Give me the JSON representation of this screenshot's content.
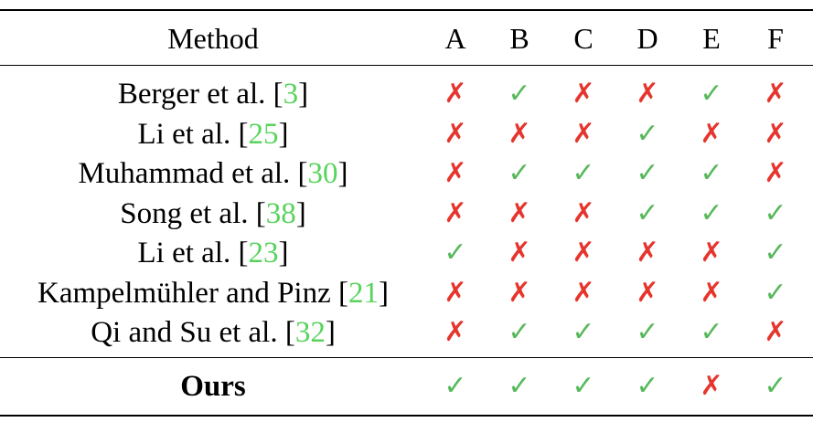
{
  "table": {
    "header": {
      "method": "Method",
      "columns": [
        "A",
        "B",
        "C",
        "D",
        "E",
        "F"
      ]
    },
    "rows": [
      {
        "name": "Berger et al. [",
        "ref": "3",
        "close": "]",
        "values": [
          "✗",
          "✓",
          "✗",
          "✗",
          "✓",
          "✗"
        ]
      },
      {
        "name": "Li et al. [",
        "ref": "25",
        "close": "]",
        "values": [
          "✗",
          "✗",
          "✗",
          "✓",
          "✗",
          "✗"
        ]
      },
      {
        "name": "Muhammad et al. [",
        "ref": "30",
        "close": "]",
        "values": [
          "✗",
          "✓",
          "✓",
          "✓",
          "✓",
          "✗"
        ]
      },
      {
        "name": "Song et al. [",
        "ref": "38",
        "close": "]",
        "values": [
          "✗",
          "✗",
          "✗",
          "✓",
          "✓",
          "✓"
        ]
      },
      {
        "name": "Li et al. [",
        "ref": "23",
        "close": "]",
        "values": [
          "✓",
          "✗",
          "✗",
          "✗",
          "✗",
          "✓"
        ]
      },
      {
        "name": "Kampelmühler and Pinz [",
        "ref": "21",
        "close": "]",
        "values": [
          "✗",
          "✗",
          "✗",
          "✗",
          "✗",
          "✓"
        ]
      },
      {
        "name": "Qi and Su et al. [",
        "ref": "32",
        "close": "]",
        "values": [
          "✗",
          "✓",
          "✓",
          "✓",
          "✓",
          "✗"
        ]
      }
    ],
    "ours": {
      "name": "Ours",
      "values": [
        "✓",
        "✓",
        "✓",
        "✓",
        "✗",
        "✓"
      ]
    }
  },
  "colors": {
    "check": "#58b85c",
    "cross": "#e5352d",
    "citation": "#58d35c"
  }
}
